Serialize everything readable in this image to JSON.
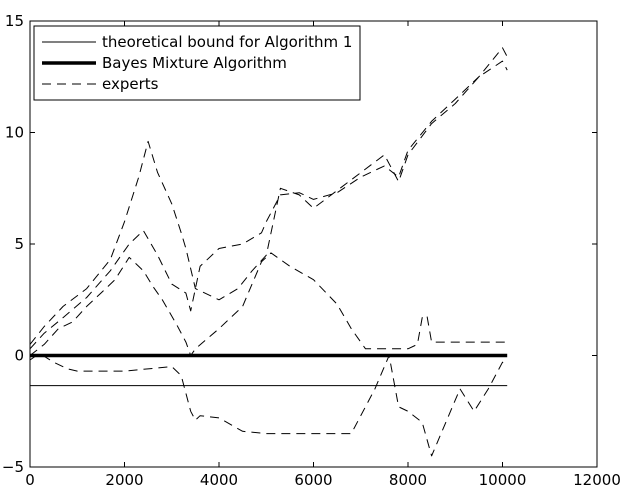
{
  "chart_data": {
    "type": "line",
    "title": "",
    "xlabel": "",
    "ylabel": "",
    "xlim": [
      0,
      12000
    ],
    "ylim": [
      -5,
      15
    ],
    "xticks": [
      0,
      2000,
      4000,
      6000,
      8000,
      10000,
      12000
    ],
    "yticks": [
      -5,
      0,
      5,
      10,
      15
    ],
    "xtick_labels": [
      "0",
      "2000",
      "4000",
      "6000",
      "8000",
      "10000",
      "12000"
    ],
    "ytick_labels": [
      "−5",
      "0",
      "5",
      "10",
      "15"
    ],
    "grid": false,
    "legend_position": "top-left",
    "legend": [
      {
        "label": "theoretical bound for Algorithm 1",
        "style": "thin"
      },
      {
        "label": "Bayes Mixture Algorithm",
        "style": "thick"
      },
      {
        "label": "experts",
        "style": "dashed"
      }
    ],
    "series": [
      {
        "name": "theoretical bound for Algorithm 1",
        "style": "thin",
        "x": [
          0,
          10100
        ],
        "y": [
          -1.35,
          -1.35
        ]
      },
      {
        "name": "Bayes Mixture Algorithm",
        "style": "thick",
        "x": [
          0,
          10100
        ],
        "y": [
          0,
          0
        ]
      },
      {
        "name": "experts",
        "style": "dashed",
        "x": [
          0,
          300,
          700,
          1200,
          1700,
          2100,
          2400,
          2700,
          3000,
          3300,
          3400,
          3600,
          4000,
          4500,
          4900,
          5000,
          5300,
          5700,
          6000,
          6500,
          7000,
          7500,
          7800,
          8000,
          8500,
          9000,
          9500,
          10000,
          10100
        ],
        "y": [
          0.3,
          1.0,
          1.7,
          2.6,
          3.8,
          5.0,
          5.6,
          4.5,
          3.2,
          2.8,
          2.0,
          4.0,
          4.8,
          5.0,
          5.5,
          6.0,
          7.2,
          7.3,
          7.0,
          7.3,
          8.0,
          8.5,
          8.0,
          9.2,
          10.5,
          11.5,
          12.5,
          13.8,
          13.4
        ]
      },
      {
        "name": "experts",
        "style": "dashed",
        "x": [
          0,
          300,
          700,
          1200,
          1700,
          2000,
          2300,
          2500,
          2700,
          3000,
          3200,
          3300,
          3500,
          4000,
          4400,
          4700,
          5000,
          5300,
          5700,
          6000,
          6500,
          7000,
          7500,
          7800,
          8000,
          8500,
          9000,
          9500,
          10000,
          10100
        ],
        "y": [
          0.5,
          1.3,
          2.2,
          3.0,
          4.3,
          6.0,
          8.0,
          9.6,
          8.2,
          6.8,
          5.5,
          4.8,
          3.0,
          2.5,
          3.0,
          3.8,
          4.5,
          7.5,
          7.2,
          6.6,
          7.4,
          8.2,
          9.0,
          7.8,
          9.0,
          10.4,
          11.3,
          12.5,
          13.2,
          12.8
        ]
      },
      {
        "name": "experts",
        "style": "dashed",
        "x": [
          0,
          300,
          600,
          900,
          1200,
          1500,
          1800,
          2100,
          2400,
          2600,
          2800,
          3100,
          3300,
          3400,
          3500,
          4000,
          4500,
          4900,
          5100,
          5500,
          6000,
          6500,
          6800,
          7100,
          7500,
          8000,
          8200,
          8300,
          8400,
          8500,
          9000,
          9500,
          10000,
          10100
        ],
        "y": [
          0.0,
          0.5,
          1.2,
          1.5,
          2.2,
          2.8,
          3.4,
          4.4,
          3.8,
          3.1,
          2.5,
          1.4,
          0.6,
          0.0,
          0.3,
          1.2,
          2.2,
          4.2,
          4.6,
          4.0,
          3.4,
          2.3,
          1.2,
          0.3,
          0.3,
          0.3,
          0.5,
          1.7,
          1.8,
          0.6,
          0.6,
          0.6,
          0.6,
          0.6
        ]
      },
      {
        "name": "experts",
        "style": "dashed",
        "x": [
          0,
          200,
          500,
          800,
          1000,
          2000,
          3000,
          3200,
          3400,
          3500,
          3600,
          4000,
          4500,
          5000,
          6000,
          6800,
          7300,
          7600,
          7800,
          8000,
          8300,
          8500,
          8800,
          9100,
          9400,
          9700,
          10000,
          10100
        ],
        "y": [
          -0.2,
          0.1,
          -0.3,
          -0.6,
          -0.7,
          -0.7,
          -0.5,
          -0.9,
          -2.5,
          -2.9,
          -2.7,
          -2.8,
          -3.4,
          -3.5,
          -3.5,
          -3.5,
          -1.5,
          0.0,
          -2.3,
          -2.5,
          -3.0,
          -4.5,
          -3.0,
          -1.5,
          -2.5,
          -1.5,
          -0.3,
          -0.5
        ]
      }
    ]
  }
}
